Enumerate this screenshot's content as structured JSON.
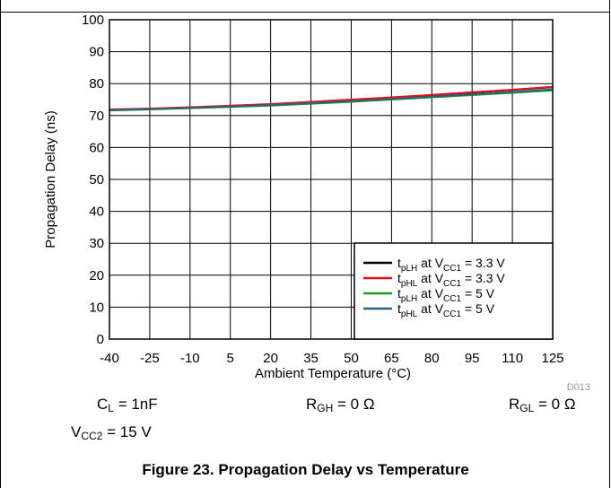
{
  "chart_data": {
    "type": "line",
    "xlabel": "Ambient Temperature (°C)",
    "ylabel": "Propagation Delay (ns)",
    "xlim": [
      -40,
      125
    ],
    "ylim": [
      0,
      100
    ],
    "xticks": [
      -40,
      -25,
      -10,
      5,
      20,
      35,
      50,
      65,
      80,
      95,
      110,
      125
    ],
    "yticks": [
      0,
      10,
      20,
      30,
      40,
      50,
      60,
      70,
      80,
      90,
      100
    ],
    "grid": true,
    "legend_position": "bottom-right",
    "watermark": "D013",
    "x": [
      -40,
      -25,
      -10,
      5,
      20,
      35,
      50,
      65,
      80,
      95,
      110,
      125
    ],
    "series": [
      {
        "label_main": "t",
        "label_sub": "pLH",
        "label_mid": " at V",
        "label_sub2": "CC1",
        "label_tail": " = 3.3 V",
        "color": "#000000",
        "values": [
          71.8,
          72.1,
          72.5,
          73.0,
          73.5,
          74.2,
          74.9,
          75.6,
          76.4,
          77.2,
          78.0,
          78.9
        ]
      },
      {
        "label_main": "t",
        "label_sub": "pHL",
        "label_mid": " at V",
        "label_sub2": "CC1",
        "label_tail": " = 3.3 V",
        "color": "#e8101a",
        "values": [
          71.9,
          72.2,
          72.6,
          73.1,
          73.6,
          74.3,
          75.0,
          75.7,
          76.5,
          77.3,
          78.1,
          79.0
        ]
      },
      {
        "label_main": "t",
        "label_sub": "pLH",
        "label_mid": " at V",
        "label_sub2": "CC1",
        "label_tail": " = 5 V",
        "color": "#1a9a1a",
        "values": [
          71.6,
          71.9,
          72.3,
          72.7,
          73.1,
          73.7,
          74.3,
          75.0,
          75.7,
          76.4,
          77.1,
          77.9
        ]
      },
      {
        "label_main": "t",
        "label_sub": "pHL",
        "label_mid": " at V",
        "label_sub2": "CC1",
        "label_tail": " = 5 V",
        "color": "#2a6286",
        "values": [
          71.7,
          72.0,
          72.4,
          72.8,
          73.3,
          73.9,
          74.5,
          75.2,
          75.9,
          76.6,
          77.4,
          78.2
        ]
      }
    ]
  },
  "conditions": {
    "cl_main": "C",
    "cl_sub": "L",
    "cl_tail": " = 1nF",
    "rgh_main": "R",
    "rgh_sub": "GH",
    "rgh_tail": " = 0 Ω",
    "rgl_main": "R",
    "rgl_sub": "GL",
    "rgl_tail": " = 0 Ω",
    "vcc2_main": "V",
    "vcc2_sub": "CC2",
    "vcc2_tail": " = 15 V"
  },
  "caption": "Figure 23. Propagation Delay vs Temperature"
}
